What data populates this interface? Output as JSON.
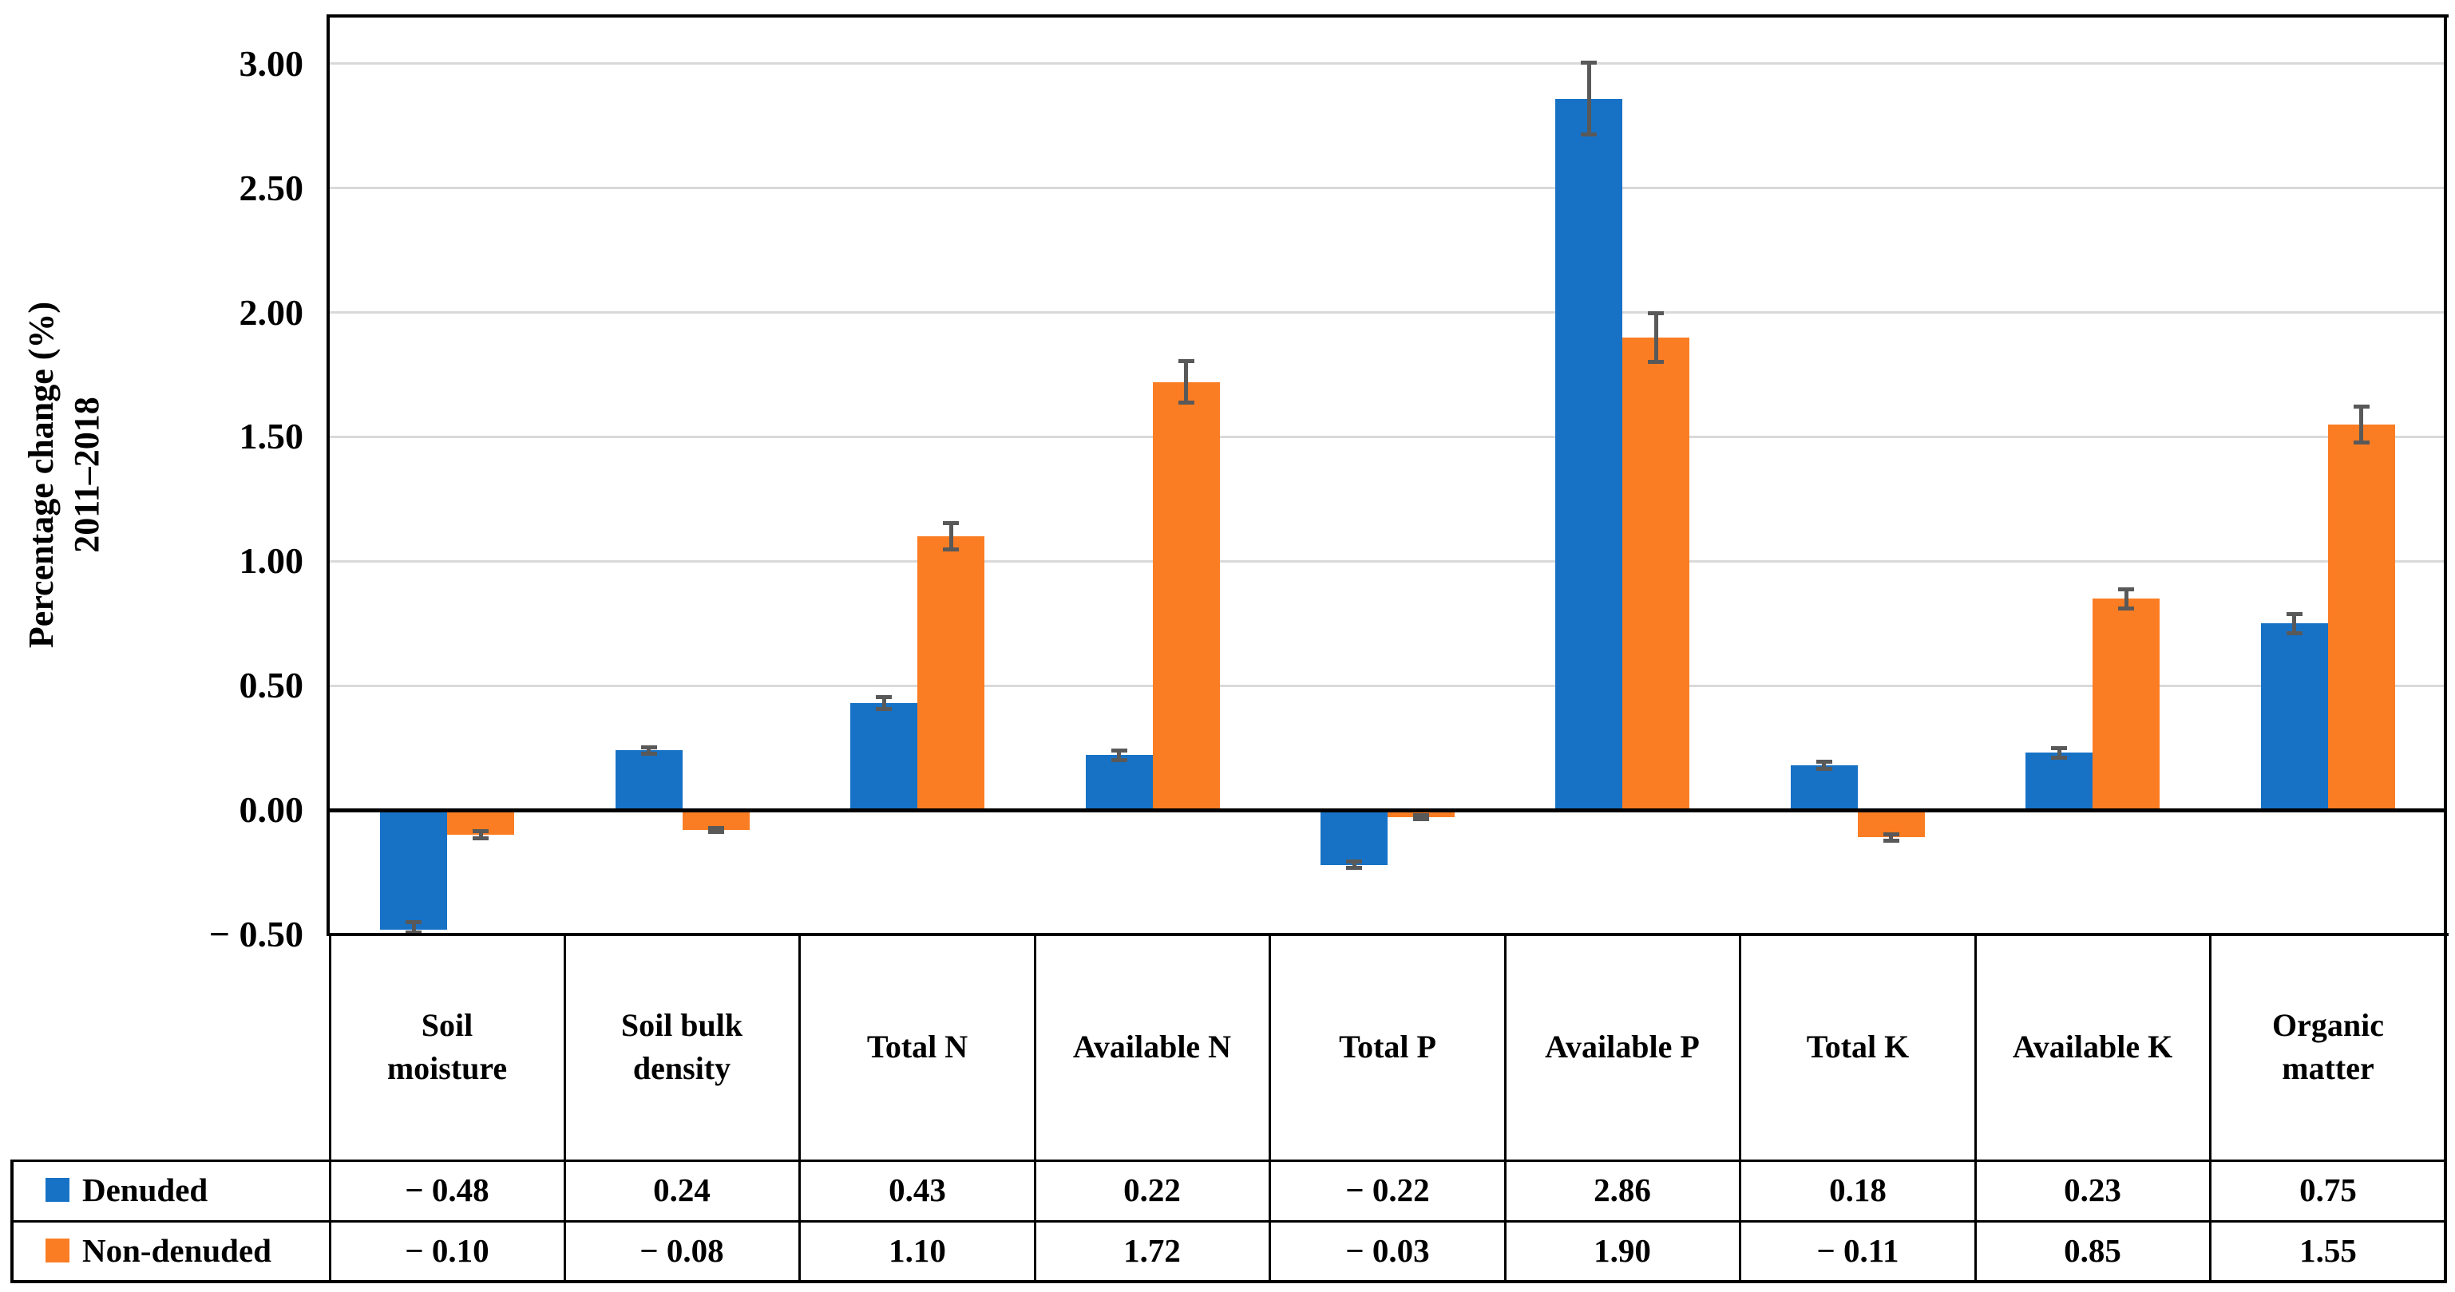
{
  "chart_data": {
    "type": "bar",
    "title": "",
    "y_axis_label_line1": "Percentage change (%)",
    "y_axis_label_line2": "2011–2018",
    "categories": [
      "Soil moisture",
      "Soil bulk density",
      "Total N",
      "Available N",
      "Total P",
      "Available P",
      "Total K",
      "Available K",
      "Organic matter"
    ],
    "series": [
      {
        "name": "Denuded",
        "color": "#1772C6",
        "values": [
          -0.48,
          0.24,
          0.43,
          0.22,
          -0.22,
          2.86,
          0.18,
          0.23,
          0.75
        ],
        "errors": [
          0.03,
          0.015,
          0.025,
          0.02,
          0.015,
          0.145,
          0.015,
          0.02,
          0.04
        ],
        "display_values": [
          "− 0.48",
          "0.24",
          "0.43",
          "0.22",
          "− 0.22",
          "2.86",
          "0.18",
          "0.23",
          "0.75"
        ]
      },
      {
        "name": "Non-denuded",
        "color": "#FB7D23",
        "values": [
          -0.1,
          -0.08,
          1.1,
          1.72,
          -0.03,
          1.9,
          -0.11,
          0.85,
          1.55
        ],
        "errors": [
          0.015,
          0.01,
          0.055,
          0.085,
          0.01,
          0.1,
          0.015,
          0.04,
          0.075
        ],
        "display_values": [
          "− 0.10",
          "− 0.08",
          "1.10",
          "1.72",
          "− 0.03",
          "1.90",
          "− 0.11",
          "0.85",
          "1.55"
        ]
      }
    ],
    "y_ticks": [
      {
        "label": "3.00",
        "value": 3.0
      },
      {
        "label": "2.50",
        "value": 2.5
      },
      {
        "label": "2.00",
        "value": 2.0
      },
      {
        "label": "1.50",
        "value": 1.5
      },
      {
        "label": "1.00",
        "value": 1.0
      },
      {
        "label": "0.50",
        "value": 0.5
      },
      {
        "label": "0.00",
        "value": 0.0
      },
      {
        "label": "− 0.50",
        "value": -0.5
      }
    ],
    "ylim": [
      -0.5,
      3.19
    ],
    "grid": true,
    "legend_position": "bottom data table, left column",
    "gridline_color": "#D9D9D9",
    "error_bar_color": "#595959",
    "axis_line_color": "#000000"
  }
}
